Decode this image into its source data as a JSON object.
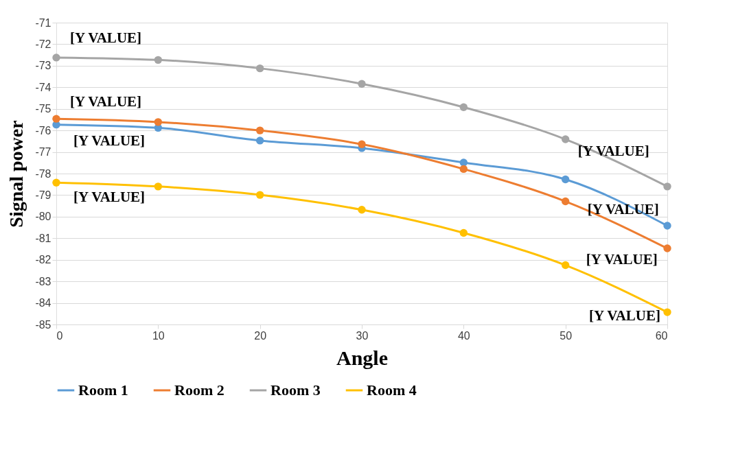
{
  "chart_data": {
    "type": "line",
    "xlabel": "Angle",
    "ylabel": "Signal power",
    "x": [
      0,
      10,
      20,
      30,
      40,
      50,
      60
    ],
    "series": [
      {
        "name": "Room 1",
        "color": "#5b9bd5",
        "values": [
          -75.73,
          -75.88,
          -76.47,
          -76.82,
          -77.49,
          -78.27,
          -80.42
        ]
      },
      {
        "name": "Room 2",
        "color": "#ed7d31",
        "values": [
          -75.46,
          -75.61,
          -76.0,
          -76.64,
          -77.79,
          -79.29,
          -81.47
        ]
      },
      {
        "name": "Room 3",
        "color": "#a5a5a5",
        "values": [
          -72.62,
          -72.73,
          -73.12,
          -73.84,
          -74.92,
          -76.41,
          -78.6
        ]
      },
      {
        "name": "Room 4",
        "color": "#ffc000",
        "values": [
          -78.42,
          -78.6,
          -78.99,
          -79.68,
          -80.75,
          -82.25,
          -84.43
        ]
      }
    ],
    "xlim": [
      0,
      60
    ],
    "xticks": [
      0,
      10,
      20,
      30,
      40,
      50,
      60
    ],
    "ylim": [
      -85,
      -71
    ],
    "yticks": [
      -85,
      -84,
      -83,
      -82,
      -81,
      -80,
      -79,
      -78,
      -77,
      -76,
      -75,
      -74,
      -73,
      -72,
      -71
    ],
    "annotations": [
      {
        "text": "[Y VALUE]",
        "x": 0,
        "y": -72.62
      },
      {
        "text": "[Y VALUE]",
        "x": 0,
        "y": -75.46
      },
      {
        "text": "[Y VALUE]",
        "x": 0,
        "y": -75.73
      },
      {
        "text": "[Y VALUE]",
        "x": 0,
        "y": -78.42
      },
      {
        "text": "[Y VALUE]",
        "x": 50,
        "y": -76.41
      },
      {
        "text": "[Y VALUE]",
        "x": 50,
        "y": -79.29
      },
      {
        "text": "[Y VALUE]",
        "x": 50,
        "y": -82.25
      },
      {
        "text": "[Y VALUE]",
        "x": 60,
        "y": -84.43
      }
    ],
    "grid": "y",
    "legend": "bottom",
    "marker": "circle",
    "line_style": "solid"
  }
}
